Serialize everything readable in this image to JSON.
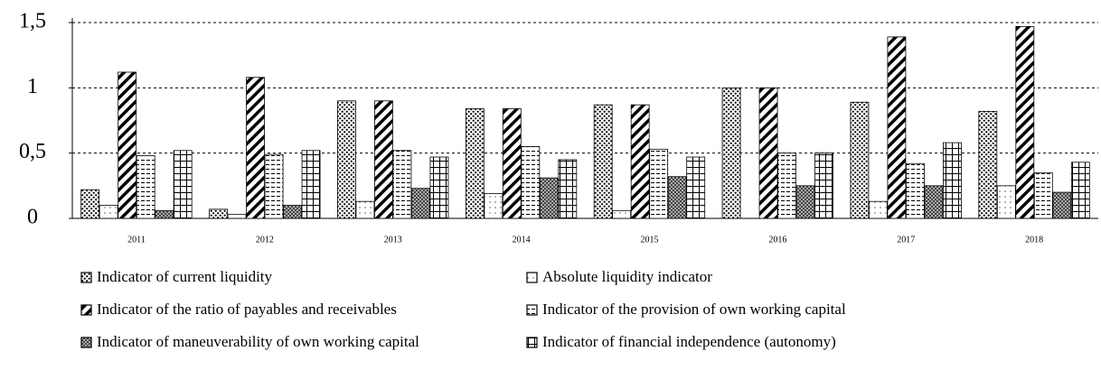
{
  "chart_data": {
    "type": "bar",
    "categories": [
      "2011",
      "2012",
      "2013",
      "2014",
      "2015",
      "2016",
      "2017",
      "2018"
    ],
    "series": [
      {
        "name": "Indicator of current liquidity",
        "color": "#000000",
        "pattern": "dense-dots",
        "values": [
          0.22,
          0.07,
          0.9,
          0.84,
          0.87,
          1.0,
          0.89,
          0.82
        ]
      },
      {
        "name": "Absolute liquidity indicator",
        "color": "#000000",
        "pattern": "sparse-dots",
        "values": [
          0.1,
          0.03,
          0.13,
          0.19,
          0.06,
          0,
          0.13,
          0.25
        ]
      },
      {
        "name": "Indicator of the ratio of payables and receivables",
        "color": "#000000",
        "pattern": "diagonal",
        "values": [
          1.12,
          1.08,
          0.9,
          0.84,
          0.87,
          1.0,
          1.39,
          1.47
        ]
      },
      {
        "name": "Indicator of the provision of own working capital",
        "color": "#000000",
        "pattern": "horizontal",
        "values": [
          0.48,
          0.49,
          0.52,
          0.55,
          0.53,
          0.5,
          0.42,
          0.35
        ]
      },
      {
        "name": "Indicator of maneuverability of own working capital",
        "color": "#000000",
        "pattern": "crosshatch",
        "values": [
          0.06,
          0.1,
          0.23,
          0.31,
          0.32,
          0.25,
          0.25,
          0.2
        ]
      },
      {
        "name": "Indicator of financial independence (autonomy)",
        "color": "#000000",
        "pattern": "grid",
        "values": [
          0.52,
          0.52,
          0.47,
          0.45,
          0.47,
          0.5,
          0.58,
          0.43
        ]
      }
    ],
    "ylim": [
      0,
      1.5
    ],
    "yticks": [
      0,
      {
        "value": 0.5,
        "label": "0,5"
      },
      1,
      {
        "value": 1.5,
        "label": "1,5"
      }
    ],
    "grid": true
  }
}
